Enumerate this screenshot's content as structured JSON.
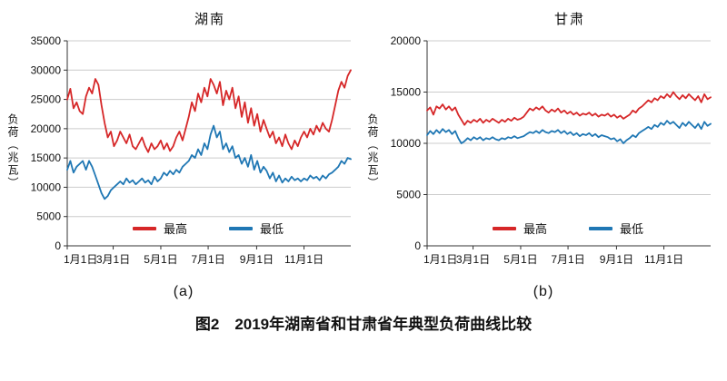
{
  "figure": {
    "caption": "图2　2019年湖南省和甘肃省年典型负荷曲线比较",
    "sub_labels": [
      "(a)",
      "(b)"
    ]
  },
  "chart_data": [
    {
      "type": "line",
      "title": "湖南",
      "ylabel": "负荷（兆瓦）",
      "ylim": [
        0,
        35000
      ],
      "yticks": [
        0,
        5000,
        10000,
        15000,
        20000,
        25000,
        30000,
        35000
      ],
      "x_ticks": [
        "1月1日",
        "3月1日",
        "5月1日",
        "7月1日",
        "9月1日",
        "11月1日"
      ],
      "x_tick_positions": [
        0,
        0.162,
        0.33,
        0.497,
        0.668,
        0.835
      ],
      "grid": true,
      "grid_color": "#cccccc",
      "axis_color": "#333333",
      "legend_position": "bottom-inside",
      "series": [
        {
          "name": "最高",
          "color": "#d62728",
          "values": [
            25000,
            26800,
            23500,
            24500,
            23000,
            22500,
            25500,
            27000,
            26000,
            28500,
            27500,
            24000,
            21000,
            18500,
            19500,
            17000,
            18000,
            19500,
            18500,
            17500,
            19000,
            17000,
            16500,
            17500,
            18500,
            17000,
            16000,
            17500,
            16500,
            17000,
            18000,
            16500,
            17500,
            16200,
            17000,
            18500,
            19500,
            18000,
            20000,
            22000,
            24500,
            23000,
            26000,
            24500,
            27000,
            25500,
            28500,
            27500,
            26000,
            28000,
            24000,
            26500,
            25000,
            27000,
            23500,
            25500,
            22000,
            24500,
            21000,
            23500,
            20500,
            22500,
            19500,
            21500,
            20000,
            18500,
            19500,
            17500,
            18500,
            17000,
            19000,
            17500,
            16500,
            18000,
            17000,
            18500,
            19500,
            18500,
            20000,
            19000,
            20500,
            19500,
            21000,
            20000,
            19500,
            21500,
            24000,
            26500,
            28000,
            27000,
            29000,
            30000
          ]
        },
        {
          "name": "最低",
          "color": "#1f77b4",
          "values": [
            13000,
            14500,
            12500,
            13500,
            14000,
            14500,
            13000,
            14500,
            13500,
            12000,
            10500,
            9000,
            8000,
            8500,
            9500,
            10000,
            10500,
            11000,
            10500,
            11500,
            10800,
            11200,
            10500,
            11000,
            11500,
            10800,
            11200,
            10500,
            11800,
            11000,
            11500,
            12500,
            12000,
            12800,
            12200,
            13000,
            12500,
            13500,
            14000,
            14500,
            15500,
            15000,
            16500,
            15500,
            17500,
            16500,
            19000,
            20500,
            18500,
            19500,
            16500,
            17500,
            16000,
            17000,
            15000,
            15500,
            14000,
            15000,
            13500,
            15500,
            13000,
            14500,
            12500,
            13500,
            12800,
            11500,
            12500,
            11000,
            12000,
            10800,
            11500,
            11000,
            11800,
            11200,
            11500,
            11000,
            11500,
            11200,
            12000,
            11500,
            11800,
            11200,
            12000,
            11500,
            12200,
            12500,
            13000,
            13500,
            14500,
            14000,
            15000,
            14800
          ]
        }
      ]
    },
    {
      "type": "line",
      "title": "甘肃",
      "ylabel": "负荷（兆瓦）",
      "ylim": [
        0,
        20000
      ],
      "yticks": [
        0,
        5000,
        10000,
        15000,
        20000
      ],
      "x_ticks": [
        "1月1日",
        "3月1日",
        "5月1日",
        "7月1日",
        "9月1日",
        "11月1日"
      ],
      "x_tick_positions": [
        0,
        0.162,
        0.33,
        0.497,
        0.668,
        0.835
      ],
      "grid": true,
      "grid_color": "#cccccc",
      "axis_color": "#333333",
      "legend_position": "bottom-inside",
      "series": [
        {
          "name": "最高",
          "color": "#d62728",
          "values": [
            13200,
            13500,
            12800,
            13600,
            13400,
            13800,
            13300,
            13600,
            13200,
            13500,
            12800,
            12300,
            11800,
            12200,
            12000,
            12300,
            12100,
            12400,
            12000,
            12300,
            12100,
            12400,
            12200,
            12000,
            12300,
            12100,
            12400,
            12200,
            12500,
            12300,
            12400,
            12600,
            13000,
            13400,
            13200,
            13500,
            13300,
            13600,
            13200,
            13000,
            13300,
            13100,
            13400,
            13000,
            13200,
            12900,
            13100,
            12800,
            13000,
            12700,
            12900,
            12800,
            13000,
            12700,
            12900,
            12600,
            12800,
            12700,
            12900,
            12600,
            12800,
            12500,
            12700,
            12400,
            12600,
            12800,
            13200,
            13000,
            13400,
            13600,
            13900,
            14200,
            14000,
            14400,
            14200,
            14600,
            14400,
            14800,
            14500,
            15000,
            14600,
            14300,
            14700,
            14400,
            14800,
            14500,
            14200,
            14600,
            14000,
            14800,
            14300,
            14500
          ]
        },
        {
          "name": "最低",
          "color": "#1f77b4",
          "values": [
            10800,
            11200,
            10900,
            11300,
            11000,
            11400,
            11100,
            11300,
            10900,
            11200,
            10500,
            10000,
            10200,
            10500,
            10300,
            10600,
            10400,
            10600,
            10300,
            10500,
            10400,
            10600,
            10400,
            10300,
            10500,
            10400,
            10600,
            10500,
            10700,
            10500,
            10600,
            10700,
            10900,
            11100,
            11000,
            11200,
            11000,
            11300,
            11100,
            11000,
            11200,
            11100,
            11300,
            11000,
            11200,
            10900,
            11100,
            10800,
            11000,
            10700,
            10900,
            10800,
            11000,
            10700,
            10900,
            10600,
            10800,
            10700,
            10600,
            10400,
            10500,
            10200,
            10400,
            10000,
            10300,
            10500,
            10800,
            10600,
            11000,
            11200,
            11400,
            11600,
            11400,
            11800,
            11600,
            12000,
            11800,
            12200,
            11900,
            12100,
            11800,
            11500,
            12000,
            11700,
            12100,
            11800,
            11500,
            11900,
            11400,
            12100,
            11700,
            11900
          ]
        }
      ]
    }
  ]
}
